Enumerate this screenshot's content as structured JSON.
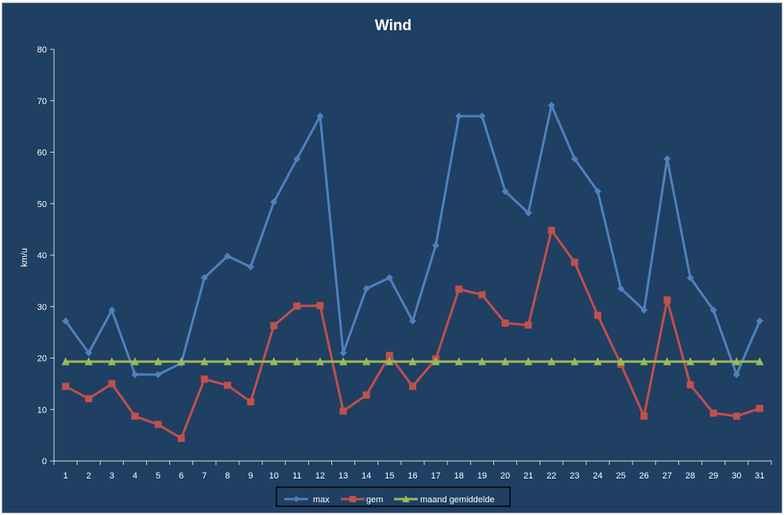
{
  "chart_data": {
    "type": "line",
    "title": "Wind",
    "xlabel": "",
    "ylabel": "km/u",
    "ylim": [
      0,
      80
    ],
    "yticks": [
      0,
      10,
      20,
      30,
      40,
      50,
      60,
      70,
      80
    ],
    "grid": false,
    "legend_position": "bottom",
    "categories": [
      "1",
      "2",
      "3",
      "4",
      "5",
      "6",
      "7",
      "8",
      "9",
      "10",
      "11",
      "12",
      "13",
      "14",
      "15",
      "16",
      "17",
      "18",
      "19",
      "20",
      "21",
      "22",
      "23",
      "24",
      "25",
      "26",
      "27",
      "28",
      "29",
      "30",
      "31"
    ],
    "series": [
      {
        "name": "max",
        "color": "#4f81bd",
        "marker": "diamond",
        "values": [
          27.2,
          21,
          29.3,
          16.8,
          16.8,
          19,
          35.6,
          39.8,
          37.7,
          50.3,
          58.7,
          67,
          21,
          33.5,
          35.6,
          27.2,
          41.9,
          67,
          67,
          52.4,
          48.2,
          69.1,
          58.7,
          52.4,
          33.5,
          29.3,
          58.7,
          35.6,
          29.3,
          16.8,
          27.2
        ]
      },
      {
        "name": "gem",
        "color": "#c0504d",
        "marker": "square",
        "values": [
          14.5,
          12.1,
          15,
          8.7,
          7.1,
          4.4,
          15.9,
          14.7,
          11.5,
          26.3,
          30.1,
          30.2,
          9.7,
          12.8,
          20.5,
          14.5,
          19.8,
          33.4,
          32.3,
          26.8,
          26.4,
          44.8,
          38.6,
          28.3,
          18.8,
          8.7,
          31.3,
          14.8,
          9.3,
          8.7,
          10.2
        ]
      },
      {
        "name": "maand gemiddelde",
        "color": "#9bbb59",
        "marker": "triangle",
        "values": [
          19.3,
          19.3,
          19.3,
          19.3,
          19.3,
          19.3,
          19.3,
          19.3,
          19.3,
          19.3,
          19.3,
          19.3,
          19.3,
          19.3,
          19.3,
          19.3,
          19.3,
          19.3,
          19.3,
          19.3,
          19.3,
          19.3,
          19.3,
          19.3,
          19.3,
          19.3,
          19.3,
          19.3,
          19.3,
          19.3,
          19.3
        ]
      }
    ]
  }
}
